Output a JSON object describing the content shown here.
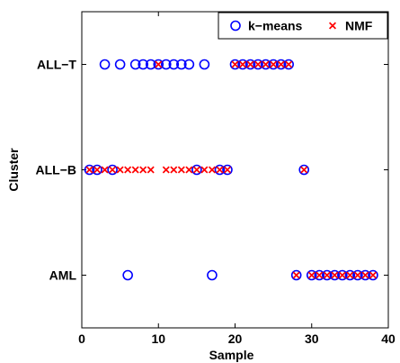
{
  "chart_data": {
    "type": "scatter",
    "xlabel": "Sample",
    "ylabel": "Cluster",
    "xlim": [
      0,
      40
    ],
    "x_ticks": [
      "0",
      "10",
      "20",
      "30",
      "40"
    ],
    "categories": [
      "AML",
      "ALL−B",
      "ALL−T"
    ],
    "grid": false,
    "legend_position": "top-right",
    "series": [
      {
        "name": "k−means",
        "marker": "circle",
        "color": "#0000ff",
        "points": [
          {
            "x": 3,
            "y": "ALL−T"
          },
          {
            "x": 5,
            "y": "ALL−T"
          },
          {
            "x": 7,
            "y": "ALL−T"
          },
          {
            "x": 8,
            "y": "ALL−T"
          },
          {
            "x": 9,
            "y": "ALL−T"
          },
          {
            "x": 10,
            "y": "ALL−T"
          },
          {
            "x": 11,
            "y": "ALL−T"
          },
          {
            "x": 12,
            "y": "ALL−T"
          },
          {
            "x": 13,
            "y": "ALL−T"
          },
          {
            "x": 14,
            "y": "ALL−T"
          },
          {
            "x": 16,
            "y": "ALL−T"
          },
          {
            "x": 20,
            "y": "ALL−T"
          },
          {
            "x": 21,
            "y": "ALL−T"
          },
          {
            "x": 22,
            "y": "ALL−T"
          },
          {
            "x": 23,
            "y": "ALL−T"
          },
          {
            "x": 24,
            "y": "ALL−T"
          },
          {
            "x": 25,
            "y": "ALL−T"
          },
          {
            "x": 26,
            "y": "ALL−T"
          },
          {
            "x": 27,
            "y": "ALL−T"
          },
          {
            "x": 1,
            "y": "ALL−B"
          },
          {
            "x": 2,
            "y": "ALL−B"
          },
          {
            "x": 4,
            "y": "ALL−B"
          },
          {
            "x": 15,
            "y": "ALL−B"
          },
          {
            "x": 18,
            "y": "ALL−B"
          },
          {
            "x": 19,
            "y": "ALL−B"
          },
          {
            "x": 29,
            "y": "ALL−B"
          },
          {
            "x": 6,
            "y": "AML"
          },
          {
            "x": 17,
            "y": "AML"
          },
          {
            "x": 28,
            "y": "AML"
          },
          {
            "x": 30,
            "y": "AML"
          },
          {
            "x": 31,
            "y": "AML"
          },
          {
            "x": 32,
            "y": "AML"
          },
          {
            "x": 33,
            "y": "AML"
          },
          {
            "x": 34,
            "y": "AML"
          },
          {
            "x": 35,
            "y": "AML"
          },
          {
            "x": 36,
            "y": "AML"
          },
          {
            "x": 37,
            "y": "AML"
          },
          {
            "x": 38,
            "y": "AML"
          }
        ]
      },
      {
        "name": "NMF",
        "marker": "x",
        "color": "#ff0000",
        "points": [
          {
            "x": 10,
            "y": "ALL−T"
          },
          {
            "x": 20,
            "y": "ALL−T"
          },
          {
            "x": 21,
            "y": "ALL−T"
          },
          {
            "x": 22,
            "y": "ALL−T"
          },
          {
            "x": 23,
            "y": "ALL−T"
          },
          {
            "x": 24,
            "y": "ALL−T"
          },
          {
            "x": 25,
            "y": "ALL−T"
          },
          {
            "x": 26,
            "y": "ALL−T"
          },
          {
            "x": 27,
            "y": "ALL−T"
          },
          {
            "x": 1,
            "y": "ALL−B"
          },
          {
            "x": 2,
            "y": "ALL−B"
          },
          {
            "x": 3,
            "y": "ALL−B"
          },
          {
            "x": 4,
            "y": "ALL−B"
          },
          {
            "x": 5,
            "y": "ALL−B"
          },
          {
            "x": 6,
            "y": "ALL−B"
          },
          {
            "x": 7,
            "y": "ALL−B"
          },
          {
            "x": 8,
            "y": "ALL−B"
          },
          {
            "x": 9,
            "y": "ALL−B"
          },
          {
            "x": 11,
            "y": "ALL−B"
          },
          {
            "x": 12,
            "y": "ALL−B"
          },
          {
            "x": 13,
            "y": "ALL−B"
          },
          {
            "x": 14,
            "y": "ALL−B"
          },
          {
            "x": 15,
            "y": "ALL−B"
          },
          {
            "x": 16,
            "y": "ALL−B"
          },
          {
            "x": 17,
            "y": "ALL−B"
          },
          {
            "x": 18,
            "y": "ALL−B"
          },
          {
            "x": 19,
            "y": "ALL−B"
          },
          {
            "x": 29,
            "y": "ALL−B"
          },
          {
            "x": 28,
            "y": "AML"
          },
          {
            "x": 30,
            "y": "AML"
          },
          {
            "x": 31,
            "y": "AML"
          },
          {
            "x": 32,
            "y": "AML"
          },
          {
            "x": 33,
            "y": "AML"
          },
          {
            "x": 34,
            "y": "AML"
          },
          {
            "x": 35,
            "y": "AML"
          },
          {
            "x": 36,
            "y": "AML"
          },
          {
            "x": 37,
            "y": "AML"
          },
          {
            "x": 38,
            "y": "AML"
          }
        ]
      }
    ]
  }
}
